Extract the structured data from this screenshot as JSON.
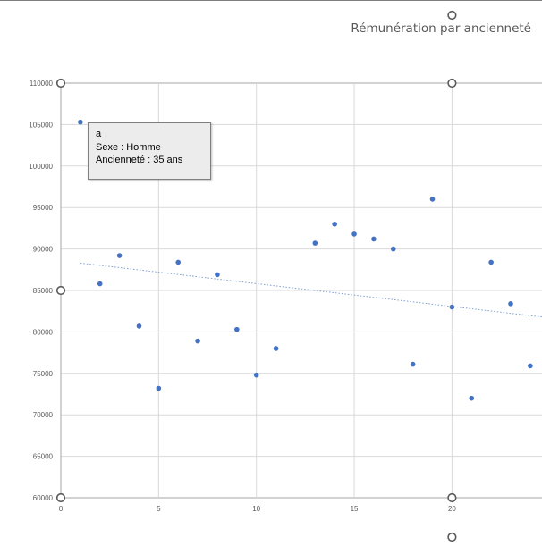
{
  "chart_data": {
    "type": "scatter",
    "title": "Rémunération par ancienneté",
    "xlabel": "",
    "ylabel": "",
    "xlim": [
      0,
      24.6
    ],
    "ylim": [
      60000,
      110000
    ],
    "x_ticks": [
      "0",
      "5",
      "10",
      "15",
      "20"
    ],
    "y_ticks": [
      "60000",
      "65000",
      "70000",
      "75000",
      "80000",
      "85000",
      "90000",
      "95000",
      "100000",
      "105000",
      "110000"
    ],
    "grid": true,
    "legend": "none",
    "series": [
      {
        "color": "#4472c4",
        "points": [
          {
            "x": 1,
            "y": 105300
          },
          {
            "x": 2,
            "y": 85800
          },
          {
            "x": 3,
            "y": 89200
          },
          {
            "x": 4,
            "y": 80700
          },
          {
            "x": 5,
            "y": 73200
          },
          {
            "x": 6,
            "y": 88400
          },
          {
            "x": 7,
            "y": 78900
          },
          {
            "x": 8,
            "y": 86900
          },
          {
            "x": 9,
            "y": 80300
          },
          {
            "x": 10,
            "y": 74800
          },
          {
            "x": 11,
            "y": 78000
          },
          {
            "x": 13,
            "y": 90700
          },
          {
            "x": 14,
            "y": 93000
          },
          {
            "x": 15,
            "y": 91800
          },
          {
            "x": 16,
            "y": 91200
          },
          {
            "x": 17,
            "y": 90000
          },
          {
            "x": 18,
            "y": 76100
          },
          {
            "x": 19,
            "y": 96000
          },
          {
            "x": 20,
            "y": 83000
          },
          {
            "x": 21,
            "y": 72000
          },
          {
            "x": 22,
            "y": 88400
          },
          {
            "x": 23,
            "y": 83400
          },
          {
            "x": 24,
            "y": 75900
          }
        ]
      }
    ],
    "trendline": {
      "type": "linear",
      "style": "dotted",
      "color": "#7f9fd0",
      "start": {
        "x": 1,
        "y": 88300
      },
      "end": {
        "x": 24.6,
        "y": 81800
      }
    },
    "tooltip": {
      "name": "a",
      "sexe": "Sexe : Homme",
      "anciennete": "Ancienneté : 35 ans"
    }
  }
}
